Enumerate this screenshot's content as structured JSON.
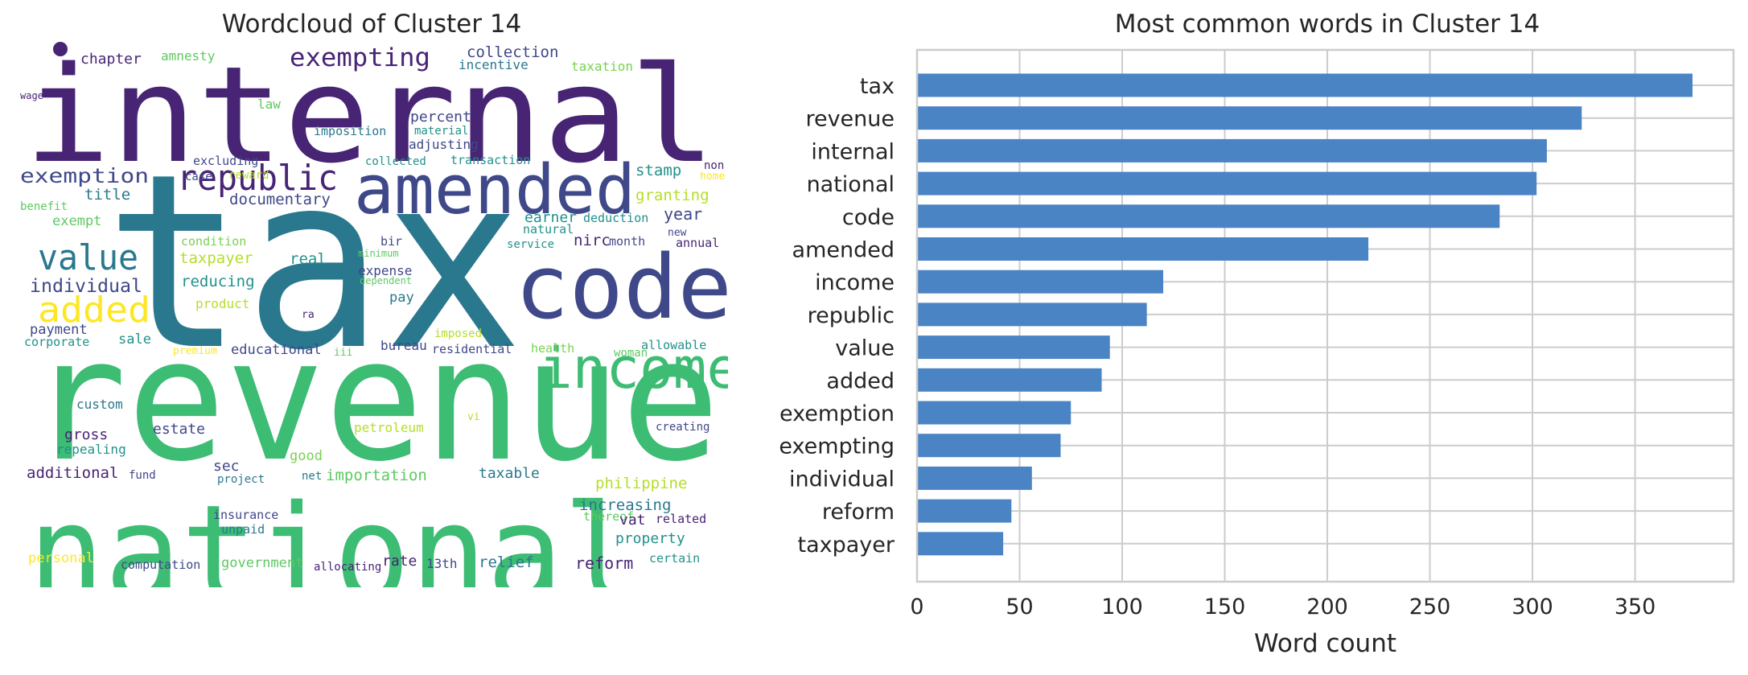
{
  "wordcloud": {
    "title": "Wordcloud of Cluster 14",
    "words": [
      {
        "text": "internal",
        "color": "#482475"
      },
      {
        "text": "tax",
        "color": "#2a788e"
      },
      {
        "text": "revenue",
        "color": "#3dbc74"
      },
      {
        "text": "national",
        "color": "#3dbc74"
      },
      {
        "text": "amended",
        "color": "#3f4889"
      },
      {
        "text": "code",
        "color": "#3f4889"
      },
      {
        "text": "income",
        "color": "#3dbc74"
      },
      {
        "text": "republic",
        "color": "#482475"
      },
      {
        "text": "value",
        "color": "#2a788e"
      },
      {
        "text": "added",
        "color": "#fde725"
      },
      {
        "text": "exempting",
        "color": "#482475"
      },
      {
        "text": "exemption",
        "color": "#3f4889"
      },
      {
        "text": "individual",
        "color": "#3f4889"
      },
      {
        "text": "chapter",
        "color": "#482475"
      },
      {
        "text": "amnesty",
        "color": "#5ec962"
      },
      {
        "text": "collection",
        "color": "#3f4889"
      },
      {
        "text": "incentive",
        "color": "#2a788e"
      },
      {
        "text": "taxation",
        "color": "#7ad151"
      },
      {
        "text": "wage",
        "color": "#482475"
      },
      {
        "text": "law",
        "color": "#5ec962"
      },
      {
        "text": "percent",
        "color": "#3f4889"
      },
      {
        "text": "imposition",
        "color": "#2a788e"
      },
      {
        "text": "material",
        "color": "#21918c"
      },
      {
        "text": "adjusting",
        "color": "#3f4889"
      },
      {
        "text": "excluding",
        "color": "#3f4889"
      },
      {
        "text": "collected",
        "color": "#21918c"
      },
      {
        "text": "transaction",
        "color": "#21918c"
      },
      {
        "text": "non",
        "color": "#482475"
      },
      {
        "text": "home",
        "color": "#fde725"
      },
      {
        "text": "stamp",
        "color": "#21918c"
      },
      {
        "text": "title",
        "color": "#2a788e"
      },
      {
        "text": "benefit",
        "color": "#5ec962"
      },
      {
        "text": "case",
        "color": "#3f4889"
      },
      {
        "text": "reward",
        "color": "#b5de2b"
      },
      {
        "text": "documentary",
        "color": "#3f4889"
      },
      {
        "text": "granting",
        "color": "#b5de2b"
      },
      {
        "text": "year",
        "color": "#3f4889"
      },
      {
        "text": "exempt",
        "color": "#5ec962"
      },
      {
        "text": "earner",
        "color": "#21918c"
      },
      {
        "text": "natural",
        "color": "#21918c"
      },
      {
        "text": "deduction",
        "color": "#21918c"
      },
      {
        "text": "month",
        "color": "#3f4889"
      },
      {
        "text": "new",
        "color": "#3f4889"
      },
      {
        "text": "nirc",
        "color": "#482475"
      },
      {
        "text": "condition",
        "color": "#7ad151"
      },
      {
        "text": "taxpayer",
        "color": "#b5de2b"
      },
      {
        "text": "real",
        "color": "#21918c"
      },
      {
        "text": "bir",
        "color": "#3f4889"
      },
      {
        "text": "minimum",
        "color": "#5ec962"
      },
      {
        "text": "service",
        "color": "#21918c"
      },
      {
        "text": "annual",
        "color": "#482475"
      },
      {
        "text": "expense",
        "color": "#3f4889"
      },
      {
        "text": "dependent",
        "color": "#5ec962"
      },
      {
        "text": "reducing",
        "color": "#21918c"
      },
      {
        "text": "pay",
        "color": "#2a788e"
      },
      {
        "text": "product",
        "color": "#b5de2b"
      },
      {
        "text": "ra",
        "color": "#482475"
      },
      {
        "text": "payment",
        "color": "#3f4889"
      },
      {
        "text": "corporate",
        "color": "#21918c"
      },
      {
        "text": "sale",
        "color": "#21918c"
      },
      {
        "text": "premium",
        "color": "#fde725"
      },
      {
        "text": "educational",
        "color": "#3f4889"
      },
      {
        "text": "iii",
        "color": "#5ec962"
      },
      {
        "text": "imposed",
        "color": "#b5de2b"
      },
      {
        "text": "bureau",
        "color": "#3f4889"
      },
      {
        "text": "residential",
        "color": "#3f4889"
      },
      {
        "text": "health",
        "color": "#7ad151"
      },
      {
        "text": "woman",
        "color": "#5ec962"
      },
      {
        "text": "allowable",
        "color": "#21918c"
      },
      {
        "text": "custom",
        "color": "#2a788e"
      },
      {
        "text": "vi",
        "color": "#b5de2b"
      },
      {
        "text": "petroleum",
        "color": "#b5de2b"
      },
      {
        "text": "gross",
        "color": "#482475"
      },
      {
        "text": "estate",
        "color": "#3f4889"
      },
      {
        "text": "creating",
        "color": "#3f4889"
      },
      {
        "text": "repealing",
        "color": "#21918c"
      },
      {
        "text": "good",
        "color": "#7ad151"
      },
      {
        "text": "sec",
        "color": "#3f4889"
      },
      {
        "text": "additional",
        "color": "#482475"
      },
      {
        "text": "fund",
        "color": "#3f4889"
      },
      {
        "text": "project",
        "color": "#2a788e"
      },
      {
        "text": "net",
        "color": "#2a788e"
      },
      {
        "text": "importation",
        "color": "#5ec962"
      },
      {
        "text": "taxable",
        "color": "#2a788e"
      },
      {
        "text": "philippine",
        "color": "#b5de2b"
      },
      {
        "text": "increasing",
        "color": "#2a788e"
      },
      {
        "text": "thereof",
        "color": "#5ec962"
      },
      {
        "text": "vat",
        "color": "#482475"
      },
      {
        "text": "related",
        "color": "#482475"
      },
      {
        "text": "insurance",
        "color": "#3f4889"
      },
      {
        "text": "unpaid",
        "color": "#2a788e"
      },
      {
        "text": "property",
        "color": "#21918c"
      },
      {
        "text": "personal",
        "color": "#fde725"
      },
      {
        "text": "computation",
        "color": "#3f4889"
      },
      {
        "text": "government",
        "color": "#5ec962"
      },
      {
        "text": "allocating",
        "color": "#482475"
      },
      {
        "text": "rate",
        "color": "#482475"
      },
      {
        "text": "13th",
        "color": "#3f4889"
      },
      {
        "text": "relief",
        "color": "#2a788e"
      },
      {
        "text": "reform",
        "color": "#482475"
      },
      {
        "text": "certain",
        "color": "#21918c"
      }
    ]
  },
  "chart_data": {
    "type": "bar",
    "orientation": "horizontal",
    "title": "Most common words in Cluster 14",
    "xlabel": "Word count",
    "ylabel": "",
    "categories": [
      "tax",
      "revenue",
      "internal",
      "national",
      "code",
      "amended",
      "income",
      "republic",
      "value",
      "added",
      "exemption",
      "exempting",
      "individual",
      "reform",
      "taxpayer"
    ],
    "values": [
      378,
      324,
      307,
      302,
      284,
      220,
      120,
      112,
      94,
      90,
      75,
      70,
      56,
      46,
      42
    ],
    "xlim": [
      0,
      398
    ],
    "xticks": [
      0,
      50,
      100,
      150,
      200,
      250,
      300,
      350
    ],
    "grid": true,
    "bar_color": "#4a84c4",
    "grid_color": "#cccccc"
  }
}
